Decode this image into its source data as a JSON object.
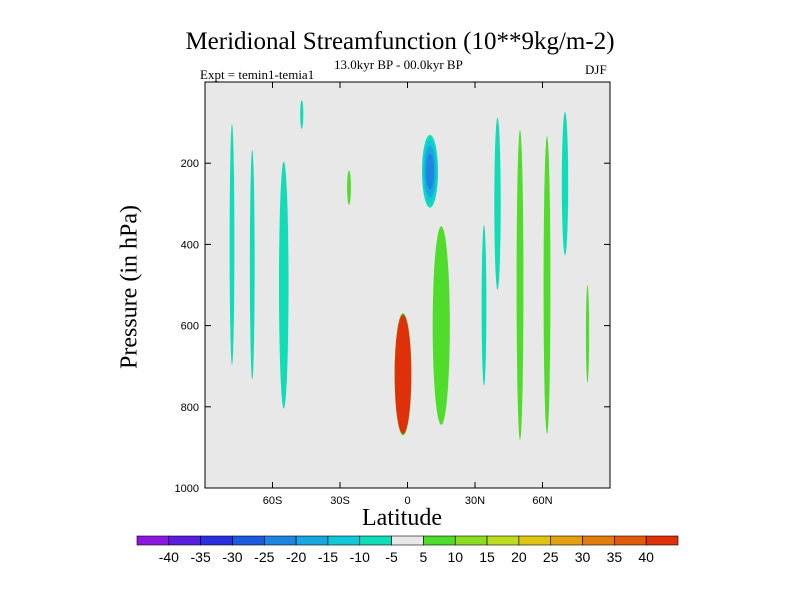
{
  "chart_data": {
    "type": "heatmap",
    "title": "Meridional Streamfunction (10**9kg/m-2)",
    "left_string": "Expt = temin1-temia1",
    "center_string": "13.0kyr BP - 00.0kyr BP",
    "right_string": "DJF",
    "xlabel": "Latitude",
    "ylabel": "Pressure (in hPa)",
    "xlim": [
      -90,
      90
    ],
    "ylim": [
      1000,
      0
    ],
    "x_ticks": [
      {
        "value": -60,
        "label": "60S"
      },
      {
        "value": -30,
        "label": "30S"
      },
      {
        "value": 0,
        "label": "0"
      },
      {
        "value": 30,
        "label": "30N"
      },
      {
        "value": 60,
        "label": "60N"
      }
    ],
    "y_ticks": [
      {
        "value": 200,
        "label": "200"
      },
      {
        "value": 400,
        "label": "400"
      },
      {
        "value": 600,
        "label": "600"
      },
      {
        "value": 800,
        "label": "800"
      },
      {
        "value": 1000,
        "label": "1000"
      }
    ],
    "background_color": "#e8e8e8",
    "label_bar": {
      "levels": [
        "-40",
        "-35",
        "-30",
        "-25",
        "-20",
        "-15",
        "-10",
        "-5",
        "5",
        "10",
        "15",
        "20",
        "25",
        "30",
        "35",
        "40"
      ],
      "colors": [
        "#8c17e0",
        "#5a1ee0",
        "#2a30e0",
        "#1e5ae0",
        "#1e86e0",
        "#16a8e0",
        "#10c8d8",
        "#10dcb8",
        "#e8e8e8",
        "#50dc2a",
        "#8adc22",
        "#bcdc1e",
        "#e0c414",
        "#e2a00e",
        "#e27c0c",
        "#e25a08",
        "#e0300a"
      ]
    },
    "regions": [
      {
        "name": "sh-polar-neg",
        "value": -7,
        "lat": -78,
        "p": 400,
        "dlat": 1.5,
        "dp": 420
      },
      {
        "name": "sh-mid-neg-a",
        "value": -7,
        "lat": -69,
        "p": 450,
        "dlat": 1.5,
        "dp": 400
      },
      {
        "name": "sh-mid-neg-b",
        "value": -7,
        "lat": -55,
        "p": 500,
        "dlat": 3,
        "dp": 430
      },
      {
        "name": "sh-upper-neg",
        "value": -7,
        "lat": -47,
        "p": 80,
        "dlat": 1,
        "dp": 50
      },
      {
        "name": "sh-subtrop-pos",
        "value": 7,
        "lat": -26,
        "p": 260,
        "dlat": 1.2,
        "dp": 60
      },
      {
        "name": "hadley-cell",
        "value": 40,
        "lat": -2,
        "p": 720,
        "dlat": 4,
        "dp": 160
      },
      {
        "name": "eq-upper-neg",
        "value": -22,
        "lat": 10,
        "p": 220,
        "dlat": 4,
        "dp": 100
      },
      {
        "name": "nh-pos-column",
        "value": 9,
        "lat": 15,
        "p": 600,
        "dlat": 5,
        "dp": 320
      },
      {
        "name": "nh-mid-neg",
        "value": -7,
        "lat": 34,
        "p": 550,
        "dlat": 1.5,
        "dp": 280
      },
      {
        "name": "nh-pos-a",
        "value": 9,
        "lat": 50,
        "p": 500,
        "dlat": 2,
        "dp": 500
      },
      {
        "name": "nh-pos-b",
        "value": 9,
        "lat": 62,
        "p": 500,
        "dlat": 2,
        "dp": 480
      },
      {
        "name": "nh-pos-c",
        "value": 7,
        "lat": 80,
        "p": 620,
        "dlat": 1,
        "dp": 170
      },
      {
        "name": "nh-neg-a",
        "value": -7,
        "lat": 70,
        "p": 250,
        "dlat": 2,
        "dp": 250
      },
      {
        "name": "nh-neg-b",
        "value": -7,
        "lat": 40,
        "p": 300,
        "dlat": 2,
        "dp": 300
      }
    ]
  }
}
